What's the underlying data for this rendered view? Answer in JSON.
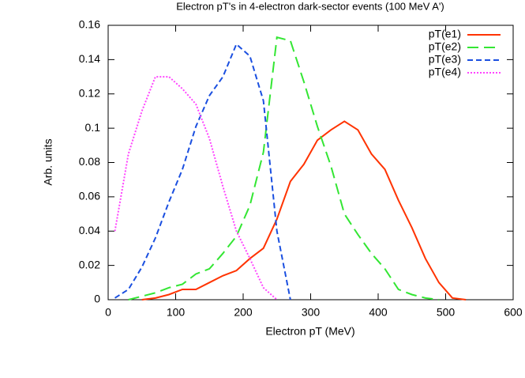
{
  "chart_data": {
    "type": "line",
    "title": "Electron pT's in 4-electron dark-sector events (100 MeV A')",
    "x_label": "Electron pT (MeV)",
    "y_label": "Arb. units",
    "xlim": [
      0,
      600
    ],
    "xticks": [
      0,
      100,
      200,
      300,
      400,
      500,
      600
    ],
    "ylim": [
      0,
      0.16
    ],
    "yticks": [
      0,
      0.02,
      0.04,
      0.06,
      0.08,
      0.1,
      0.12,
      0.14,
      0.16
    ],
    "legend": "top-right",
    "series": [
      {
        "name": "pT(e1)",
        "color": "#ff3300",
        "dash": "none",
        "x": [
          50,
          70,
          90,
          110,
          130,
          150,
          170,
          190,
          210,
          230,
          250,
          270,
          290,
          310,
          330,
          350,
          370,
          390,
          410,
          430,
          450,
          470,
          490,
          510,
          530
        ],
        "values": [
          0,
          0.001,
          0.003,
          0.006,
          0.006,
          0.01,
          0.014,
          0.017,
          0.024,
          0.03,
          0.047,
          0.069,
          0.079,
          0.093,
          0.099,
          0.104,
          0.099,
          0.085,
          0.076,
          0.058,
          0.042,
          0.024,
          0.01,
          0.001,
          0
        ]
      },
      {
        "name": "pT(e2)",
        "color": "#33e633",
        "dash": "14 7",
        "x": [
          30,
          50,
          70,
          90,
          110,
          130,
          150,
          170,
          190,
          210,
          230,
          250,
          270,
          290,
          310,
          330,
          350,
          370,
          390,
          410,
          430,
          450,
          470,
          490
        ],
        "values": [
          0,
          0.002,
          0.004,
          0.007,
          0.009,
          0.015,
          0.018,
          0.027,
          0.037,
          0.055,
          0.086,
          0.153,
          0.151,
          0.127,
          0.101,
          0.078,
          0.05,
          0.038,
          0.027,
          0.018,
          0.006,
          0.003,
          0.001,
          0
        ]
      },
      {
        "name": "pT(e3)",
        "color": "#1a4fe0",
        "dash": "7 4",
        "x": [
          10,
          30,
          50,
          70,
          90,
          110,
          130,
          150,
          170,
          190,
          210,
          230,
          250,
          270
        ],
        "values": [
          0.001,
          0.006,
          0.019,
          0.036,
          0.057,
          0.076,
          0.101,
          0.119,
          0.13,
          0.149,
          0.142,
          0.116,
          0.04,
          0
        ]
      },
      {
        "name": "pT(e4)",
        "color": "#ff44ff",
        "dash": "2 2",
        "x": [
          10,
          30,
          50,
          70,
          90,
          110,
          130,
          150,
          170,
          190,
          210,
          230,
          250
        ],
        "values": [
          0.04,
          0.085,
          0.11,
          0.13,
          0.13,
          0.123,
          0.114,
          0.094,
          0.066,
          0.04,
          0.024,
          0.007,
          0
        ]
      }
    ]
  }
}
